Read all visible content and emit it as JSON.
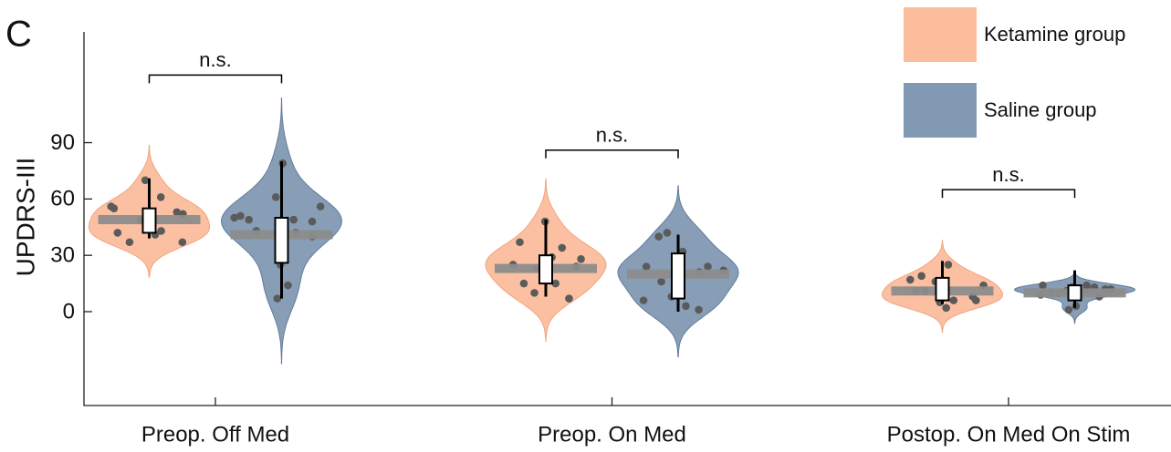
{
  "chart_data": {
    "type": "violin",
    "panel_label": "C",
    "ylabel": "UPDRS-III",
    "categories": [
      "Preop. Off Med",
      "Preop. On Med",
      "Postop. On Med On Stim"
    ],
    "ylim": [
      -50,
      149
    ],
    "yticks": [
      0,
      30,
      60,
      90
    ],
    "legend_position": "upper right",
    "point_color": "#5b5b5b",
    "mean_color": "#8c8c8c",
    "series": [
      {
        "name": "Ketamine group",
        "color": "#fbbd9c",
        "edge_color": "#f2a47f",
        "points": [
          [
            43,
            37,
            52,
            44,
            55,
            61,
            70,
            37,
            41,
            42,
            53,
            49,
            56
          ],
          [
            15,
            15,
            28,
            48,
            37,
            34,
            10,
            7,
            29,
            25,
            24,
            23
          ],
          [
            6,
            11,
            6,
            5,
            17,
            25,
            11,
            14,
            2,
            19,
            8,
            16
          ]
        ],
        "means": [
          49,
          23,
          11
        ],
        "q1": [
          42,
          15,
          6
        ],
        "q3": [
          55,
          30,
          18
        ],
        "whisker_low": [
          39,
          8,
          4
        ],
        "whisker_high": [
          71,
          49,
          27
        ]
      },
      {
        "name": "Saline group",
        "color": "#8299b3",
        "edge_color": "#5f7c9b",
        "points": [
          [
            49,
            43,
            40,
            25,
            51,
            14,
            7,
            56,
            79,
            49,
            48,
            61,
            50,
            42
          ],
          [
            3,
            42,
            1,
            21,
            40,
            21,
            16,
            22,
            32,
            24,
            24,
            8,
            6
          ],
          [
            12,
            10,
            12,
            13,
            14,
            13,
            10,
            8,
            3,
            1,
            12,
            11,
            9,
            14
          ]
        ],
        "means": [
          41,
          20,
          10
        ],
        "q1": [
          26,
          7,
          6
        ],
        "q3": [
          50,
          31,
          14
        ],
        "whisker_low": [
          7,
          0,
          2
        ],
        "whisker_high": [
          80,
          41,
          22
        ]
      }
    ],
    "annotations": [
      {
        "text": "n.s.",
        "y": 126
      },
      {
        "text": "n.s.",
        "y": 86
      },
      {
        "text": "n.s.",
        "y": 65
      }
    ]
  }
}
